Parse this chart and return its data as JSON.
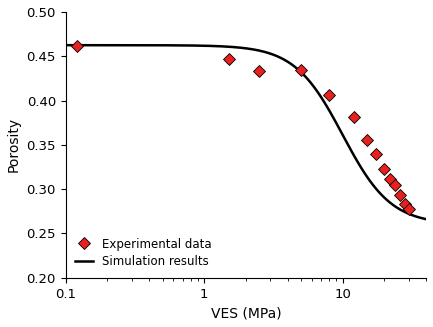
{
  "experimental_x": [
    0.12,
    1.5,
    2.5,
    5.0,
    8.0,
    12.0,
    15.0,
    17.5,
    20.0,
    22.0,
    24.0,
    26.0,
    28.0,
    30.0
  ],
  "experimental_y": [
    0.462,
    0.447,
    0.433,
    0.434,
    0.406,
    0.382,
    0.356,
    0.34,
    0.323,
    0.312,
    0.305,
    0.293,
    0.283,
    0.278
  ],
  "xlim": [
    0.1,
    40
  ],
  "ylim": [
    0.2,
    0.5
  ],
  "yticks": [
    0.2,
    0.25,
    0.3,
    0.35,
    0.4,
    0.45,
    0.5
  ],
  "xlabel": "VES (MPa)",
  "ylabel": "Porosity",
  "marker_color": "#e82020",
  "marker_edge_color": "#000000",
  "line_color": "#000000",
  "legend_labels": [
    "Experimental data",
    "Simulation results"
  ],
  "phi0": 0.4625,
  "phi_inf": 0.26,
  "sigma_ref": 10.0,
  "beta": 2.5
}
